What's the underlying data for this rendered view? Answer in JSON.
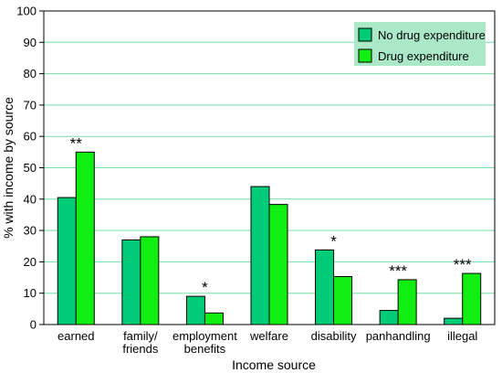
{
  "chart_data": {
    "type": "bar",
    "xlabel": "Income source",
    "ylabel": "% with income by source",
    "ylim": [
      0,
      100
    ],
    "yticks": [
      0,
      10,
      20,
      30,
      40,
      50,
      60,
      70,
      80,
      90,
      100
    ],
    "grid": true,
    "legend_position": "top-right",
    "categories": [
      [
        "earned"
      ],
      [
        "family/",
        "friends"
      ],
      [
        "employment",
        "benefits"
      ],
      [
        "welfare"
      ],
      [
        "disability"
      ],
      [
        "panhandling"
      ],
      [
        "illegal"
      ]
    ],
    "series": [
      {
        "name": "No drug expenditure",
        "color": "#00cc77",
        "values": [
          40.5,
          27,
          9,
          44,
          23.8,
          4.5,
          2
        ]
      },
      {
        "name": "Drug expenditure",
        "color": "#11ee11",
        "values": [
          55,
          28,
          3.7,
          38.3,
          15.3,
          14.3,
          16.3
        ]
      }
    ],
    "significance": [
      "**",
      "",
      "*",
      "",
      "*",
      "***",
      "***"
    ],
    "grid_color": "#77ddaa",
    "legend_bg": "#aae8c8"
  }
}
